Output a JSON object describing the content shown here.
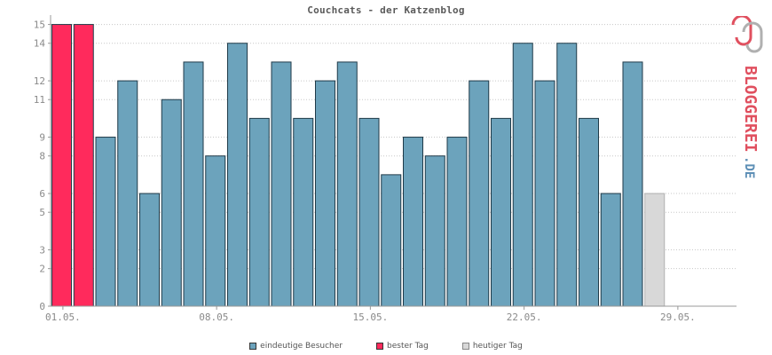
{
  "colors": {
    "visitors": "#6ca3bc",
    "best_day": "#ff2a5c",
    "today": "#d8d8d8",
    "bar_stroke": "#1f3a48",
    "grid": "#c8c8c8",
    "axis_text": "#8a8a8a",
    "logo_pink": "#e0505f",
    "logo_gray": "#b0b0b0",
    "logo_blue": "#5d8fb6"
  },
  "logo": {
    "text": "BLOGGEREI",
    "suffix": ".DE"
  },
  "chart_data": {
    "type": "bar",
    "title": "Couchcats - der Katzenblog",
    "xlabel": "",
    "ylabel": "",
    "ylim": [
      0,
      15.5
    ],
    "yticks": [
      0,
      2,
      3,
      5,
      6,
      8,
      9,
      11,
      12,
      14,
      15
    ],
    "xtick_labels": [
      {
        "index": 0.5,
        "label": "01.05."
      },
      {
        "index": 7.5,
        "label": "08.05."
      },
      {
        "index": 14.5,
        "label": "15.05."
      },
      {
        "index": 21.5,
        "label": "22.05."
      },
      {
        "index": 28.5,
        "label": "29.05."
      }
    ],
    "num_slots": 31,
    "series": [
      {
        "name": "eindeutige Besucher",
        "kind": "visitors",
        "values": [
          [
            2,
            9
          ],
          [
            3,
            12
          ],
          [
            4,
            6
          ],
          [
            5,
            11
          ],
          [
            6,
            13
          ],
          [
            7,
            8
          ],
          [
            8,
            14
          ],
          [
            9,
            10
          ],
          [
            10,
            13
          ],
          [
            11,
            10
          ],
          [
            12,
            12
          ],
          [
            13,
            13
          ],
          [
            14,
            10
          ],
          [
            15,
            7
          ],
          [
            16,
            9
          ],
          [
            17,
            8
          ],
          [
            18,
            9
          ],
          [
            19,
            12
          ],
          [
            20,
            10
          ],
          [
            21,
            14
          ],
          [
            22,
            12
          ],
          [
            23,
            14
          ],
          [
            24,
            10
          ],
          [
            25,
            6
          ],
          [
            26,
            13
          ]
        ]
      },
      {
        "name": "bester Tag",
        "kind": "best_day",
        "values": [
          [
            0,
            15
          ],
          [
            1,
            15
          ]
        ]
      },
      {
        "name": "heutiger Tag",
        "kind": "today",
        "values": [
          [
            27,
            6
          ]
        ]
      }
    ],
    "legend_position": "bottom",
    "grid": true
  }
}
